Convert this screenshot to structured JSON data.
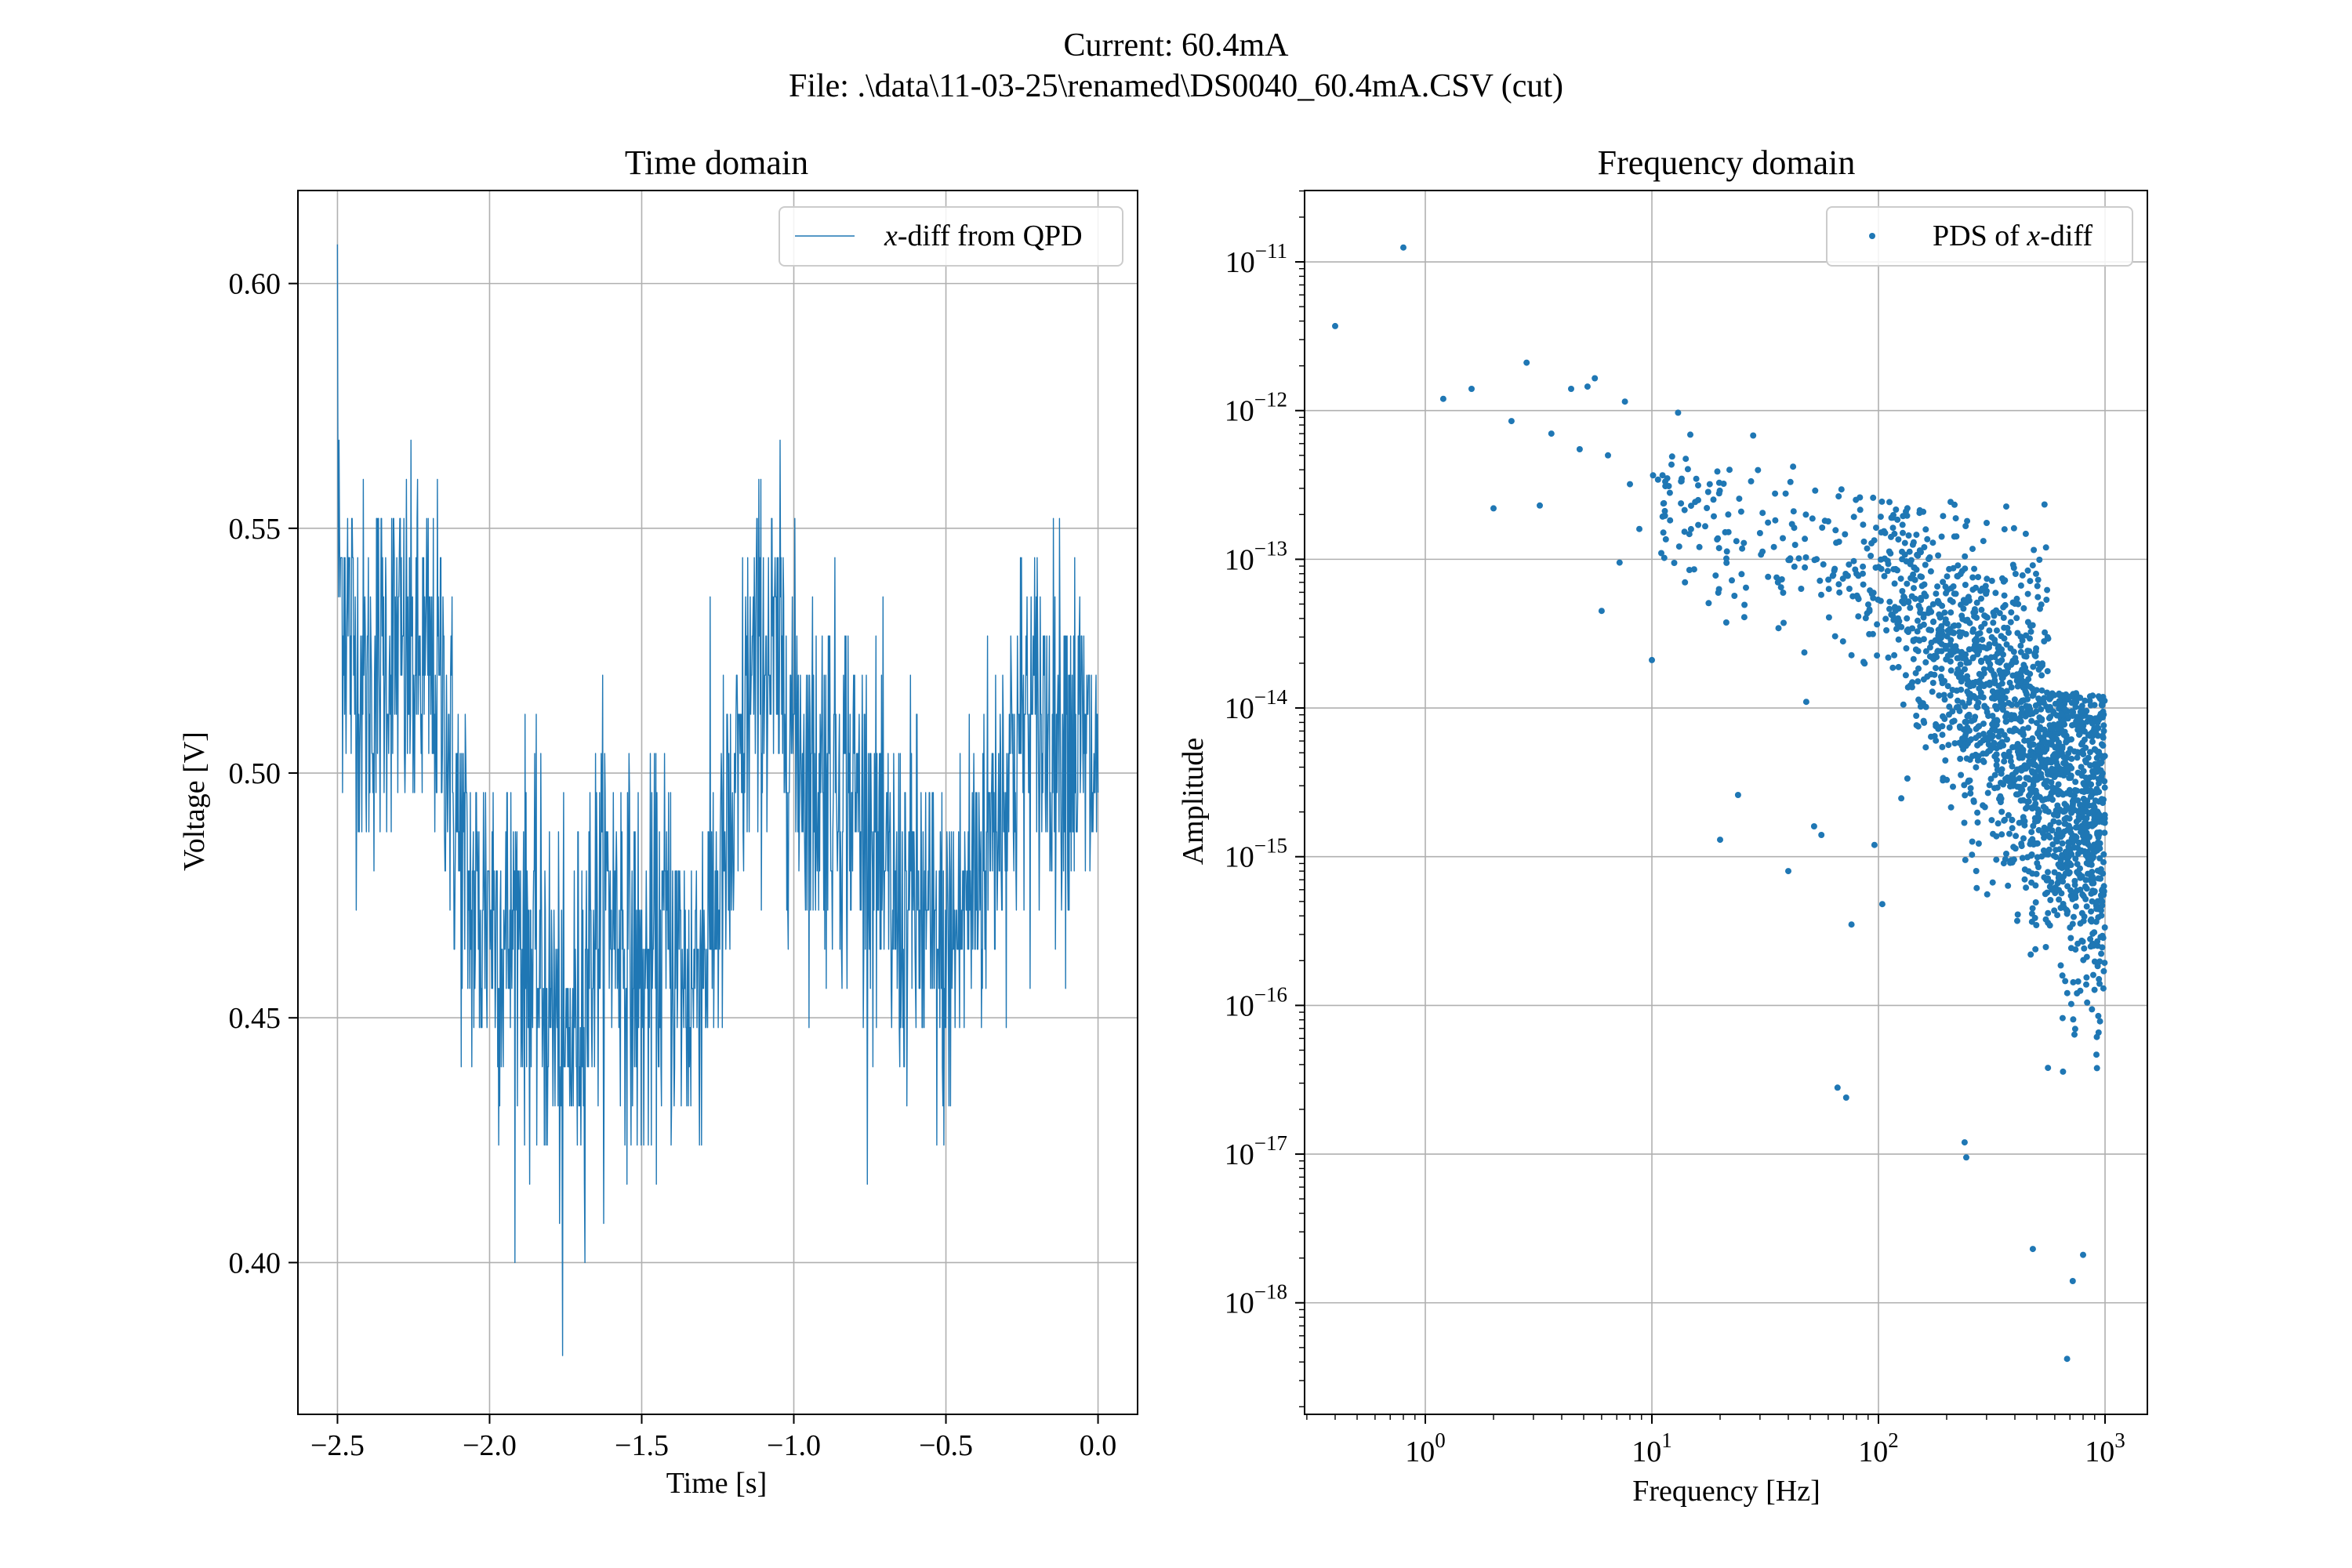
{
  "figure": {
    "suptitle_line1": "Current: 60.4mA",
    "suptitle_line2": "File: .\\data\\11-03-25\\renamed\\DS0040_60.4mA.CSV (cut)",
    "series_color": "#1f77b4"
  },
  "chart_data": [
    {
      "type": "line",
      "title": "Time domain",
      "xlabel": "Time [s]",
      "ylabel": "Voltage [V]",
      "xlim": [
        -2.63,
        0.13
      ],
      "ylim": [
        0.369,
        0.619
      ],
      "xticks": [
        -2.5,
        -2.0,
        -1.5,
        -1.0,
        -0.5,
        0.0
      ],
      "xtick_labels": [
        "−2.5",
        "−2.0",
        "−1.5",
        "−1.0",
        "−0.5",
        "0.0"
      ],
      "yticks": [
        0.4,
        0.45,
        0.5,
        0.55,
        0.6
      ],
      "ytick_labels": [
        "0.40",
        "0.45",
        "0.50",
        "0.55",
        "0.60"
      ],
      "grid": true,
      "legend": {
        "position": "top-right",
        "label_var": "x",
        "label_rest": "-diff from QPD"
      },
      "series": [
        {
          "name": "x-diff from QPD",
          "x": [
            -2.5,
            -2.45,
            -2.4,
            -2.35,
            -2.3,
            -2.25,
            -2.2,
            -2.15,
            -2.1,
            -2.05,
            -2.0,
            -1.95,
            -1.9,
            -1.85,
            -1.8,
            -1.75,
            -1.7,
            -1.65,
            -1.6,
            -1.55,
            -1.5,
            -1.45,
            -1.4,
            -1.35,
            -1.3,
            -1.25,
            -1.2,
            -1.15,
            -1.1,
            -1.05,
            -1.0,
            -0.95,
            -0.9,
            -0.85,
            -0.8,
            -0.75,
            -0.7,
            -0.65,
            -0.6,
            -0.55,
            -0.5,
            -0.45,
            -0.4,
            -0.35,
            -0.3,
            -0.25,
            -0.2,
            -0.15,
            -0.1,
            -0.05,
            0.0
          ],
          "y": [
            0.545,
            0.525,
            0.515,
            0.525,
            0.525,
            0.52,
            0.52,
            0.515,
            0.485,
            0.47,
            0.475,
            0.465,
            0.47,
            0.46,
            0.455,
            0.44,
            0.455,
            0.47,
            0.475,
            0.465,
            0.455,
            0.465,
            0.465,
            0.455,
            0.465,
            0.475,
            0.485,
            0.515,
            0.525,
            0.52,
            0.51,
            0.5,
            0.5,
            0.5,
            0.495,
            0.49,
            0.475,
            0.47,
            0.475,
            0.465,
            0.46,
            0.47,
            0.48,
            0.49,
            0.5,
            0.51,
            0.51,
            0.51,
            0.51,
            0.505,
            0.5
          ],
          "noise_amplitude": 0.035,
          "min_value": 0.381,
          "max_value": 0.608
        }
      ]
    },
    {
      "type": "scatter",
      "title": "Frequency domain",
      "xlabel": "Frequency [Hz]",
      "ylabel": "Amplitude",
      "xscale": "log",
      "yscale": "log",
      "xlim_log10": [
        -0.57,
        1.17
      ],
      "ylim_log10": [
        -18.75,
        -10.52
      ],
      "xtick_exponents": [
        0,
        1,
        2,
        3
      ],
      "ytick_exponents": [
        -18,
        -17,
        -16,
        -15,
        -14,
        -13,
        -12,
        -11
      ],
      "tick_base": "10",
      "grid": true,
      "legend": {
        "position": "top-right",
        "label_rest_prefix": "PDS of ",
        "label_var": "x",
        "label_rest": "-diff"
      },
      "series": [
        {
          "name": "PDS of x-diff",
          "points": [
            [
              0.4,
              3.7e-12
            ],
            [
              0.8,
              1.25e-11
            ],
            [
              1.2,
              1.2e-12
            ],
            [
              1.6,
              1.4e-12
            ],
            [
              2.0,
              2.2e-13
            ],
            [
              2.4,
              8.5e-13
            ],
            [
              2.8,
              2.1e-12
            ],
            [
              3.2,
              2.3e-13
            ],
            [
              3.6,
              7e-13
            ],
            [
              4.4,
              1.4e-12
            ],
            [
              4.8,
              5.5e-13
            ],
            [
              5.2,
              1.45e-12
            ],
            [
              5.6,
              1.65e-12
            ],
            [
              6.0,
              4.5e-14
            ],
            [
              6.4,
              5e-13
            ],
            [
              7.2,
              9.5e-14
            ],
            [
              7.6,
              1.15e-12
            ],
            [
              8.0,
              3.2e-13
            ],
            [
              8.8,
              1.6e-13
            ],
            [
              10.0,
              2.1e-14
            ],
            [
              11.0,
              1.1e-13
            ],
            [
              12.0,
              2.8e-13
            ],
            [
              14.0,
              7e-14
            ],
            [
              16.0,
              2.5e-13
            ],
            [
              18.0,
              3.2e-13
            ],
            [
              20.0,
              1.3e-15
            ],
            [
              22.0,
              4e-13
            ],
            [
              24.0,
              2.6e-15
            ],
            [
              28.0,
              6.8e-13
            ],
            [
              30.0,
              1.5e-13
            ],
            [
              36.0,
              7e-14
            ],
            [
              40.0,
              8e-16
            ],
            [
              42.0,
              4.2e-13
            ],
            [
              48.0,
              1.1e-14
            ],
            [
              52.0,
              1.6e-15
            ],
            [
              56.0,
              1.4e-15
            ],
            [
              60.0,
              1.8e-13
            ],
            [
              66.0,
              2.8e-17
            ],
            [
              72.0,
              2.4e-17
            ],
            [
              76.0,
              3.5e-16
            ],
            [
              80.0,
              8e-14
            ],
            [
              96.0,
              1.2e-15
            ],
            [
              104.0,
              4.8e-16
            ],
            [
              240.0,
              1.2e-17
            ],
            [
              244.0,
              9.5e-18
            ],
            [
              480.0,
              2.3e-18
            ],
            [
              680.0,
              4.2e-19
            ],
            [
              720.0,
              1.4e-18
            ],
            [
              800.0,
              2.1e-18
            ],
            [
              560.0,
              3.8e-17
            ]
          ],
          "cloud_log10_f_range": [
            1.9,
            3.0
          ],
          "cloud_amplitude_trend": "approx 1e-13 at 100 Hz falling to ~1e-15 at 1000 Hz with roughly two decades of scatter",
          "num_points_approx": 2000
        }
      ]
    }
  ]
}
